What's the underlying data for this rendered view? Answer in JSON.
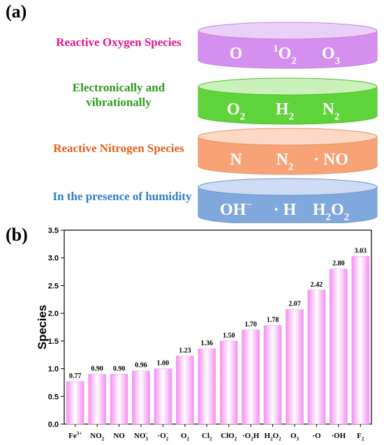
{
  "panel_a": {
    "label": "(a)",
    "rows": [
      {
        "category": "Reactive Oxygen Species",
        "category_color": "#e6158c",
        "cyl_color": "#d58fee",
        "cyl_top": "#ead0f8",
        "cyl_stroke": "#c582e0",
        "species": [
          {
            "base": "O",
            "sup": "",
            "sub": ""
          },
          {
            "base": "O",
            "sup": "1",
            "sub": "2"
          },
          {
            "base": "O",
            "sup": "",
            "sub": "3"
          }
        ]
      },
      {
        "category": "Electronically and",
        "category2": "vibrationally",
        "category_color": "#2e9b1a",
        "cyl_color": "#5fd33a",
        "cyl_top": "#c9f1b9",
        "cyl_stroke": "#4fbf2c",
        "species": [
          {
            "base": "O",
            "sup": "",
            "sub": "2"
          },
          {
            "base": "H",
            "sup": "",
            "sub": "2"
          },
          {
            "base": "N",
            "sup": "",
            "sub": "2"
          }
        ]
      },
      {
        "category": "Reactive Nitrogen Species",
        "category_color": "#e0621d",
        "cyl_color": "#f8a377",
        "cyl_top": "#fbd9c6",
        "cyl_stroke": "#ec8f5d",
        "species": [
          {
            "base": "N",
            "sup": "",
            "sub": ""
          },
          {
            "base": "N",
            "sup": "",
            "sub": "2"
          },
          {
            "base": "· NO",
            "sup": "",
            "sub": ""
          }
        ]
      },
      {
        "category": "In the presence of humidity",
        "category_color": "#2f7ec8",
        "cyl_color": "#81a8dc",
        "cyl_top": "#cddcf2",
        "cyl_stroke": "#6f96cb",
        "species": [
          {
            "base": "OH",
            "sup": "−",
            "sub": ""
          },
          {
            "base": "· H",
            "sup": "",
            "sub": ""
          },
          {
            "base": "H",
            "sup": "",
            "sub": "2",
            "tail": "O",
            "tailsub": "2"
          }
        ]
      }
    ]
  },
  "panel_b": {
    "label": "(b)",
    "bar_color": "#f48df2"
  },
  "chart_data": {
    "type": "bar",
    "categories": [
      {
        "base": "Fe",
        "sup": "3+",
        "sub": ""
      },
      {
        "base": "NO",
        "sup": "",
        "sub": "2"
      },
      {
        "base": "NO",
        "sup": "",
        "sub": ""
      },
      {
        "base": "NO",
        "sup": "−",
        "sub": "3"
      },
      {
        "base": "·O",
        "sup": "−",
        "sub": "2"
      },
      {
        "base": "O",
        "sup": "",
        "sub": "2"
      },
      {
        "base": "Cl",
        "sup": "",
        "sub": "2"
      },
      {
        "base": "ClO",
        "sup": "",
        "sub": "2"
      },
      {
        "base": "·O",
        "sup": "",
        "sub": "2",
        "tail": "H"
      },
      {
        "base": "H",
        "sup": "",
        "sub": "2",
        "tail": "O",
        "tailsub": "2"
      },
      {
        "base": "O",
        "sup": "",
        "sub": "3"
      },
      {
        "base": "·O",
        "sup": "",
        "sub": ""
      },
      {
        "base": "·OH",
        "sup": "",
        "sub": ""
      },
      {
        "base": "F",
        "sup": "",
        "sub": "2"
      }
    ],
    "values": [
      0.77,
      0.9,
      0.9,
      0.96,
      1.0,
      1.23,
      1.36,
      1.5,
      1.7,
      1.78,
      2.07,
      2.42,
      2.8,
      3.03
    ],
    "value_labels": [
      "0.77",
      "0.90",
      "0.90",
      "0.96",
      "1.00",
      "1.23",
      "1.36",
      "1.50",
      "1.70",
      "1.78",
      "2.07",
      "2.42",
      "2.80",
      "3.03"
    ],
    "ylabel": "Species",
    "xlabel": "",
    "ylim": [
      0,
      3.5
    ],
    "yticks": [
      "0.0",
      "0.5",
      "1.0",
      "1.5",
      "2.0",
      "2.5",
      "3.0",
      "3.5"
    ],
    "grid": false,
    "legend": "none"
  }
}
